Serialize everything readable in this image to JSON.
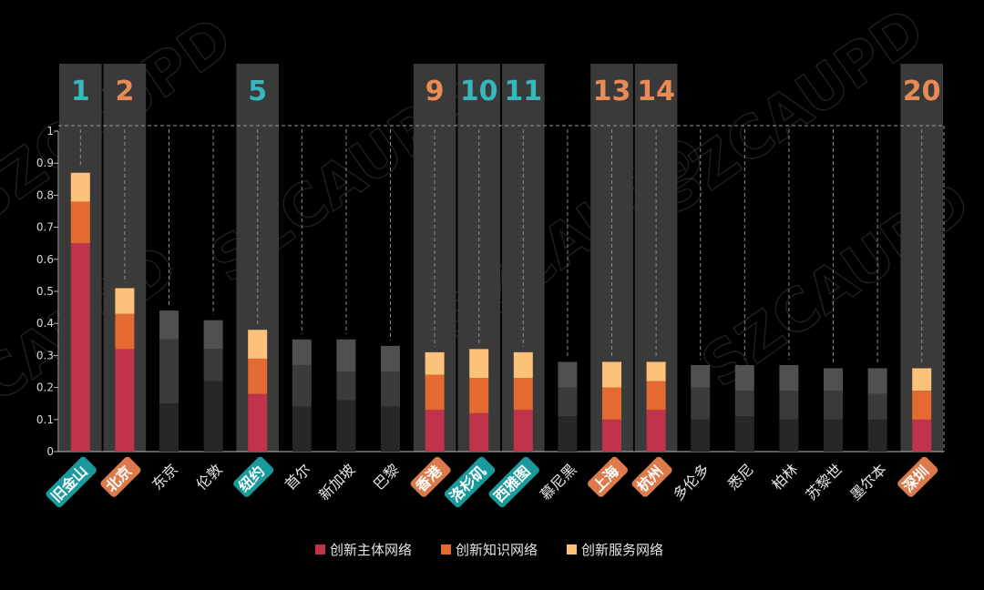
{
  "chart_data": {
    "type": "bar",
    "stacked": true,
    "categories": [
      "旧金山",
      "北京",
      "东京",
      "伦敦",
      "纽约",
      "首尔",
      "新加坡",
      "巴黎",
      "香港",
      "洛杉矶",
      "西雅图",
      "慕尼黑",
      "上海",
      "杭州",
      "多伦多",
      "悉尼",
      "柏林",
      "苏黎世",
      "墨尔本",
      "深圳"
    ],
    "series": [
      {
        "name": "创新主体网络",
        "color": "#c0334a",
        "values": [
          0.65,
          0.32,
          0.15,
          0.22,
          0.18,
          0.14,
          0.16,
          0.14,
          0.13,
          0.12,
          0.13,
          0.11,
          0.1,
          0.13,
          0.1,
          0.11,
          0.1,
          0.1,
          0.1,
          0.1
        ]
      },
      {
        "name": "创新知识网络",
        "color": "#e56a32",
        "values": [
          0.13,
          0.11,
          0.2,
          0.1,
          0.11,
          0.13,
          0.09,
          0.11,
          0.11,
          0.11,
          0.1,
          0.09,
          0.1,
          0.09,
          0.1,
          0.08,
          0.09,
          0.09,
          0.08,
          0.09
        ]
      },
      {
        "name": "创新服务网络",
        "color": "#fcc279",
        "values": [
          0.09,
          0.08,
          0.09,
          0.09,
          0.09,
          0.08,
          0.1,
          0.08,
          0.07,
          0.09,
          0.08,
          0.08,
          0.08,
          0.06,
          0.07,
          0.08,
          0.08,
          0.07,
          0.08,
          0.07
        ]
      }
    ],
    "ylim": [
      0,
      1
    ],
    "yticks": [
      "0",
      "0.1",
      "0.2",
      "0.3",
      "0.4",
      "0.5",
      "0.6",
      "0.7",
      "0.8",
      "0.9",
      "1"
    ],
    "highlighted": [
      {
        "index": 0,
        "rank": "1",
        "style": "teal"
      },
      {
        "index": 1,
        "rank": "2",
        "style": "orange"
      },
      {
        "index": 4,
        "rank": "5",
        "style": "teal"
      },
      {
        "index": 8,
        "rank": "9",
        "style": "orange"
      },
      {
        "index": 9,
        "rank": "10",
        "style": "teal"
      },
      {
        "index": 10,
        "rank": "11",
        "style": "teal"
      },
      {
        "index": 12,
        "rank": "13",
        "style": "orange"
      },
      {
        "index": 13,
        "rank": "14",
        "style": "orange"
      },
      {
        "index": 19,
        "rank": "20",
        "style": "orange"
      }
    ],
    "grid": false,
    "legend_position": "bottom-center",
    "watermark": "SZCAUPD"
  },
  "colors": {
    "teal": "#1a9a9c",
    "rank_teal": "#37b6bb",
    "orange": "#dc7a4b",
    "rank_orange": "#e98b55",
    "highlight_panel": "#3a3a3a",
    "gray_shades": [
      "#272727",
      "#3b3b3b",
      "#505050"
    ]
  }
}
